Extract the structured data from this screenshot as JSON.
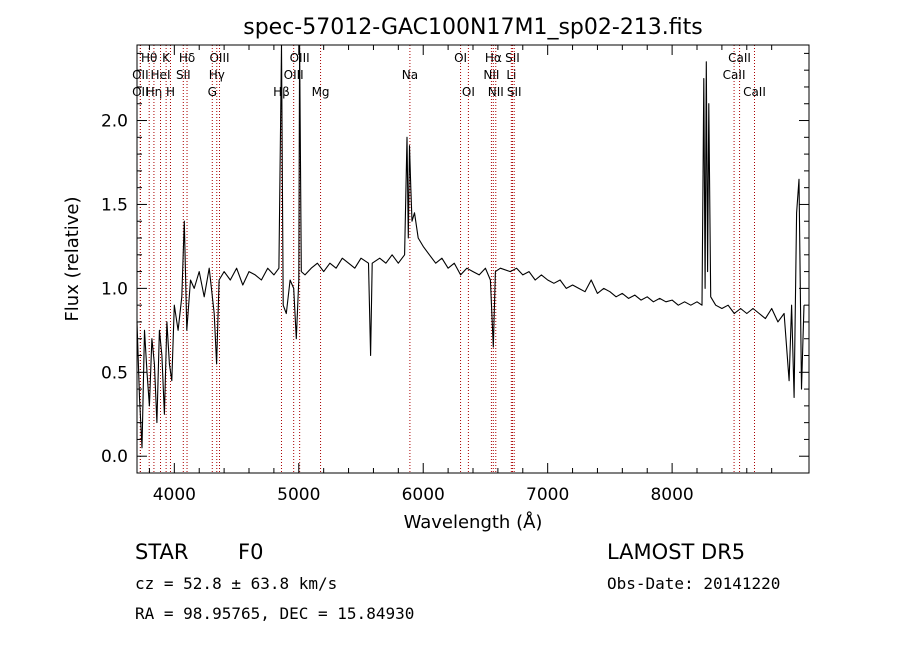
{
  "chart_data": {
    "type": "line",
    "title": "spec-57012-GAC100N17M1_sp02-213.fits",
    "xlabel": "Wavelength (Å)",
    "ylabel": "Flux (relative)",
    "xlim": [
      3700,
      9100
    ],
    "ylim": [
      -0.1,
      2.45
    ],
    "x_ticks": [
      "4000",
      "5000",
      "6000",
      "7000",
      "8000"
    ],
    "x_tick_values": [
      4000,
      5000,
      6000,
      7000,
      8000
    ],
    "y_ticks": [
      "0.0",
      "0.5",
      "1.0",
      "1.5",
      "2.0"
    ],
    "y_tick_values": [
      0.0,
      0.5,
      1.0,
      1.5,
      2.0
    ],
    "grid": false,
    "series": [
      {
        "color": "#000000",
        "points": [
          [
            3700,
            0.8
          ],
          [
            3720,
            0.35
          ],
          [
            3740,
            0.05
          ],
          [
            3760,
            0.75
          ],
          [
            3780,
            0.5
          ],
          [
            3800,
            0.3
          ],
          [
            3820,
            0.7
          ],
          [
            3840,
            0.55
          ],
          [
            3860,
            0.2
          ],
          [
            3880,
            0.75
          ],
          [
            3900,
            0.6
          ],
          [
            3920,
            0.25
          ],
          [
            3940,
            0.8
          ],
          [
            3960,
            0.55
          ],
          [
            3980,
            0.45
          ],
          [
            4000,
            0.9
          ],
          [
            4030,
            0.75
          ],
          [
            4060,
            0.95
          ],
          [
            4080,
            1.4
          ],
          [
            4100,
            0.75
          ],
          [
            4130,
            1.05
          ],
          [
            4160,
            1.0
          ],
          [
            4200,
            1.1
          ],
          [
            4240,
            0.95
          ],
          [
            4280,
            1.12
          ],
          [
            4320,
            0.85
          ],
          [
            4340,
            0.55
          ],
          [
            4360,
            1.05
          ],
          [
            4400,
            1.1
          ],
          [
            4450,
            1.05
          ],
          [
            4500,
            1.12
          ],
          [
            4550,
            1.02
          ],
          [
            4600,
            1.1
          ],
          [
            4650,
            1.08
          ],
          [
            4700,
            1.05
          ],
          [
            4750,
            1.12
          ],
          [
            4800,
            1.08
          ],
          [
            4840,
            1.12
          ],
          [
            4861,
            2.45
          ],
          [
            4875,
            0.9
          ],
          [
            4900,
            0.85
          ],
          [
            4930,
            1.05
          ],
          [
            4959,
            1.0
          ],
          [
            4980,
            0.7
          ],
          [
            5000,
            1.05
          ],
          [
            5007,
            2.45
          ],
          [
            5020,
            1.1
          ],
          [
            5050,
            1.08
          ],
          [
            5100,
            1.12
          ],
          [
            5150,
            1.15
          ],
          [
            5200,
            1.1
          ],
          [
            5250,
            1.15
          ],
          [
            5300,
            1.12
          ],
          [
            5350,
            1.18
          ],
          [
            5400,
            1.15
          ],
          [
            5450,
            1.12
          ],
          [
            5500,
            1.18
          ],
          [
            5560,
            1.15
          ],
          [
            5577,
            0.6
          ],
          [
            5590,
            1.15
          ],
          [
            5650,
            1.18
          ],
          [
            5700,
            1.15
          ],
          [
            5750,
            1.2
          ],
          [
            5800,
            1.15
          ],
          [
            5850,
            1.2
          ],
          [
            5870,
            1.9
          ],
          [
            5880,
            1.3
          ],
          [
            5890,
            1.85
          ],
          [
            5900,
            1.6
          ],
          [
            5910,
            1.4
          ],
          [
            5930,
            1.45
          ],
          [
            5960,
            1.3
          ],
          [
            6000,
            1.25
          ],
          [
            6050,
            1.2
          ],
          [
            6100,
            1.15
          ],
          [
            6150,
            1.18
          ],
          [
            6200,
            1.12
          ],
          [
            6250,
            1.15
          ],
          [
            6300,
            1.08
          ],
          [
            6350,
            1.12
          ],
          [
            6400,
            1.1
          ],
          [
            6450,
            1.08
          ],
          [
            6500,
            1.12
          ],
          [
            6540,
            1.05
          ],
          [
            6563,
            0.65
          ],
          [
            6580,
            1.1
          ],
          [
            6620,
            1.12
          ],
          [
            6700,
            1.1
          ],
          [
            6750,
            1.12
          ],
          [
            6800,
            1.08
          ],
          [
            6850,
            1.1
          ],
          [
            6900,
            1.05
          ],
          [
            6950,
            1.08
          ],
          [
            7000,
            1.05
          ],
          [
            7050,
            1.03
          ],
          [
            7100,
            1.05
          ],
          [
            7150,
            1.0
          ],
          [
            7200,
            1.02
          ],
          [
            7250,
            1.0
          ],
          [
            7300,
            0.98
          ],
          [
            7350,
            1.05
          ],
          [
            7400,
            0.97
          ],
          [
            7450,
            1.0
          ],
          [
            7500,
            0.98
          ],
          [
            7550,
            0.95
          ],
          [
            7600,
            0.97
          ],
          [
            7650,
            0.94
          ],
          [
            7700,
            0.96
          ],
          [
            7750,
            0.93
          ],
          [
            7800,
            0.95
          ],
          [
            7850,
            0.92
          ],
          [
            7900,
            0.94
          ],
          [
            7950,
            0.92
          ],
          [
            8000,
            0.93
          ],
          [
            8050,
            0.9
          ],
          [
            8100,
            0.92
          ],
          [
            8150,
            0.9
          ],
          [
            8200,
            0.92
          ],
          [
            8240,
            0.9
          ],
          [
            8255,
            2.25
          ],
          [
            8265,
            1.0
          ],
          [
            8275,
            2.35
          ],
          [
            8285,
            1.1
          ],
          [
            8295,
            2.1
          ],
          [
            8310,
            0.95
          ],
          [
            8350,
            0.9
          ],
          [
            8400,
            0.88
          ],
          [
            8450,
            0.9
          ],
          [
            8500,
            0.85
          ],
          [
            8550,
            0.88
          ],
          [
            8600,
            0.85
          ],
          [
            8650,
            0.88
          ],
          [
            8700,
            0.85
          ],
          [
            8750,
            0.82
          ],
          [
            8800,
            0.88
          ],
          [
            8850,
            0.8
          ],
          [
            8900,
            0.85
          ],
          [
            8940,
            0.45
          ],
          [
            8960,
            0.9
          ],
          [
            8980,
            0.35
          ],
          [
            9000,
            1.45
          ],
          [
            9020,
            1.65
          ],
          [
            9040,
            0.4
          ],
          [
            9060,
            0.9
          ]
        ]
      }
    ],
    "line_markers": [
      {
        "name": "Hθ",
        "wavelength": 3798,
        "row": 1
      },
      {
        "name": "OII",
        "wavelength": 3727,
        "row": 2
      },
      {
        "name": "OII",
        "wavelength": 3727,
        "row": 3
      },
      {
        "name": "Hη",
        "wavelength": 3836,
        "row": 3
      },
      {
        "name": "K",
        "wavelength": 3934,
        "row": 1
      },
      {
        "name": "HeI",
        "wavelength": 3889,
        "row": 2
      },
      {
        "name": "H",
        "wavelength": 3969,
        "row": 3
      },
      {
        "name": "Hδ",
        "wavelength": 4102,
        "row": 1
      },
      {
        "name": "SII",
        "wavelength": 4072,
        "row": 2
      },
      {
        "name": "OIII",
        "wavelength": 4363,
        "row": 1
      },
      {
        "name": "Hγ",
        "wavelength": 4341,
        "row": 2
      },
      {
        "name": "G",
        "wavelength": 4305,
        "row": 3
      },
      {
        "name": "OIII",
        "wavelength": 5007,
        "row": 1
      },
      {
        "name": "OIII",
        "wavelength": 4959,
        "row": 2
      },
      {
        "name": "Hβ",
        "wavelength": 4861,
        "row": 3
      },
      {
        "name": "Mg",
        "wavelength": 5175,
        "row": 3
      },
      {
        "name": "Na",
        "wavelength": 5893,
        "row": 2
      },
      {
        "name": "OI",
        "wavelength": 6300,
        "row": 1
      },
      {
        "name": "OI",
        "wavelength": 6363,
        "row": 3
      },
      {
        "name": "Hα",
        "wavelength": 6563,
        "row": 1
      },
      {
        "name": "NII",
        "wavelength": 6548,
        "row": 2
      },
      {
        "name": "NII",
        "wavelength": 6583,
        "row": 3
      },
      {
        "name": "SII",
        "wavelength": 6717,
        "row": 1
      },
      {
        "name": "Li",
        "wavelength": 6708,
        "row": 2
      },
      {
        "name": "SII",
        "wavelength": 6731,
        "row": 3
      },
      {
        "name": "CaII",
        "wavelength": 8542,
        "row": 1
      },
      {
        "name": "CaII",
        "wavelength": 8498,
        "row": 2
      },
      {
        "name": "CaII",
        "wavelength": 8662,
        "row": 3
      }
    ],
    "colors": {
      "marker_line": "#aa0000",
      "spectrum": "#000000",
      "axes": "#000000"
    }
  },
  "info": {
    "class": "STAR",
    "subclass": "F0",
    "survey": "LAMOST DR5",
    "redshift": "cz = 52.8 ± 63.8 km/s",
    "obs_date": "Obs-Date: 20141220",
    "coords": "RA =  98.95765, DEC =  15.84930"
  }
}
